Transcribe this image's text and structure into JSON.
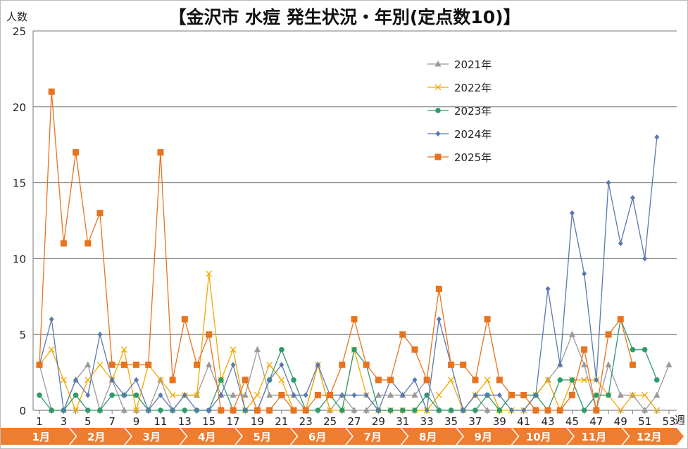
{
  "chart_data": {
    "type": "line",
    "title": "【金沢市 水痘 発生状況・年別(定点数10)】",
    "ylabel": "人数",
    "xlabel": "週",
    "ylim": [
      0,
      25
    ],
    "yticks": [
      0,
      5,
      10,
      15,
      20,
      25
    ],
    "xlim": [
      1,
      53
    ],
    "xticks": [
      1,
      3,
      5,
      7,
      9,
      11,
      13,
      15,
      17,
      19,
      21,
      23,
      25,
      27,
      29,
      31,
      33,
      35,
      37,
      39,
      41,
      43,
      45,
      47,
      49,
      51,
      53
    ],
    "grid": true,
    "legend": "top-right",
    "months": [
      "1月",
      "2月",
      "3月",
      "4月",
      "5月",
      "6月",
      "7月",
      "8月",
      "9月",
      "10月",
      "11月",
      "12月"
    ],
    "series": [
      {
        "name": "2021年",
        "color": "#999999",
        "marker": "triangle",
        "values": [
          3,
          0,
          0,
          2,
          3,
          0,
          2,
          0,
          0,
          0,
          2,
          0,
          1,
          1,
          3,
          1,
          1,
          1,
          4,
          1,
          1,
          1,
          0,
          3,
          0,
          1,
          0,
          0,
          1,
          1,
          1,
          1,
          2,
          0,
          0,
          0,
          1,
          0,
          0,
          1,
          1,
          1,
          2,
          3,
          5,
          3,
          0,
          3,
          1,
          1,
          0,
          1,
          3
        ]
      },
      {
        "name": "2022年",
        "color": "#f2a900",
        "marker": "x",
        "values": [
          3,
          4,
          2,
          0,
          2,
          3,
          2,
          4,
          0,
          3,
          2,
          1,
          1,
          1,
          9,
          2,
          4,
          0,
          1,
          3,
          2,
          0,
          0,
          3,
          0,
          0,
          4,
          1,
          0,
          0,
          0,
          0,
          0,
          1,
          2,
          0,
          1,
          2,
          0,
          0,
          0,
          1,
          2,
          0,
          2,
          2,
          2,
          1,
          0,
          1,
          1,
          0
        ]
      },
      {
        "name": "2023年",
        "color": "#2e9a6a",
        "marker": "circle",
        "values": [
          1,
          0,
          0,
          1,
          0,
          0,
          1,
          1,
          1,
          0,
          0,
          0,
          0,
          0,
          0,
          2,
          0,
          0,
          0,
          2,
          4,
          2,
          0,
          0,
          1,
          0,
          4,
          3,
          0,
          0,
          0,
          0,
          1,
          0,
          0,
          0,
          0,
          1,
          0,
          1,
          1,
          1,
          0,
          2,
          2,
          0,
          1,
          1,
          6,
          4,
          4,
          2
        ]
      },
      {
        "name": "2024年",
        "color": "#5a78b0",
        "marker": "diamond",
        "values": [
          3,
          6,
          0,
          2,
          1,
          5,
          2,
          1,
          2,
          0,
          1,
          0,
          1,
          0,
          0,
          1,
          3,
          0,
          0,
          2,
          3,
          1,
          1,
          3,
          1,
          1,
          1,
          1,
          0,
          2,
          1,
          2,
          0,
          6,
          3,
          0,
          1,
          1,
          1,
          0,
          0,
          1,
          8,
          3,
          13,
          9,
          2,
          15,
          11,
          14,
          10,
          18
        ]
      },
      {
        "name": "2025年",
        "color": "#e8731e",
        "marker": "square",
        "values": [
          3,
          21,
          11,
          17,
          11,
          13,
          3,
          3,
          3,
          3,
          17,
          2,
          6,
          3,
          5,
          0,
          0,
          2,
          0,
          0,
          1,
          0,
          0,
          1,
          1,
          3,
          6,
          3,
          2,
          2,
          5,
          4,
          2,
          8,
          3,
          3,
          2,
          6,
          2,
          1,
          1,
          0,
          0,
          0,
          1,
          4,
          0,
          5,
          6,
          3
        ]
      }
    ]
  }
}
